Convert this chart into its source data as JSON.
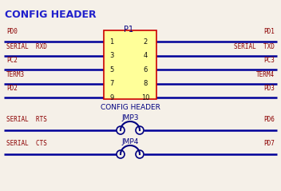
{
  "background_color": "#f5f0e8",
  "title": "CONFIG HEADER",
  "title_color": "#2020cc",
  "title_fontsize": 9,
  "label_color": "#8b0000",
  "pin_label_color": "#000080",
  "line_color": "#000080",
  "line_dark": "#000099",
  "p1_label": "P1",
  "box_color": "#ffff99",
  "box_edge": "#cc0000",
  "config_header_label": "CONFIG HEADER",
  "left_labels": [
    "PD0",
    "SERIAL  RXD",
    "PC2",
    "TERM3",
    "PD2"
  ],
  "right_labels": [
    "PD1",
    "SERIAL  TXD",
    "PC3",
    "TERM4",
    "PD3"
  ],
  "left_pins": [
    "1",
    "3",
    "5",
    "7",
    "9"
  ],
  "right_pins": [
    "2",
    "4",
    "6",
    "8",
    "10"
  ],
  "jmp3_label": "JMP3",
  "jmp4_label": "JMP4",
  "jmp_left_label": [
    "SERIAL  RTS",
    "SERIAL  CTS"
  ],
  "jmp_right_label": [
    "PD6",
    "PD7"
  ]
}
